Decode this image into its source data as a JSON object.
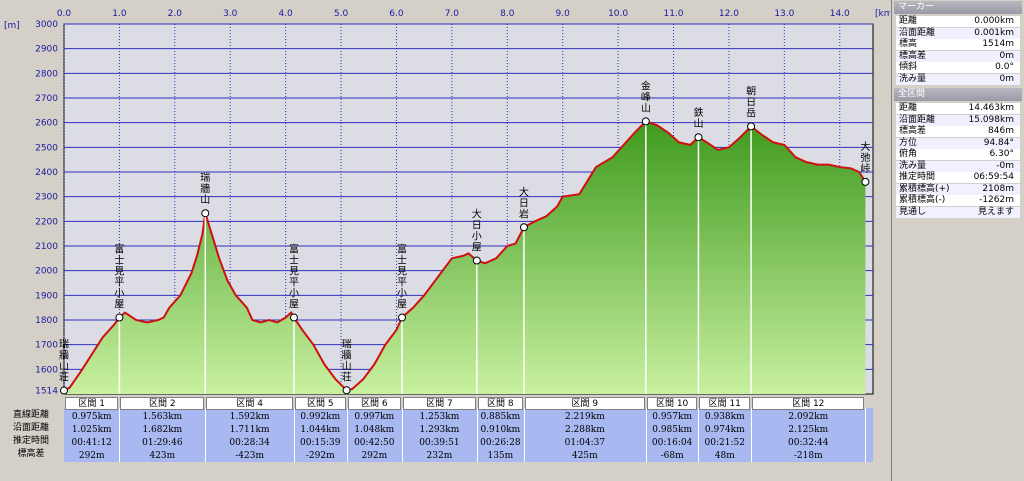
{
  "chart_data": {
    "type": "area",
    "xlabel": "[km]",
    "ylabel": "[m]",
    "xlim": [
      0,
      14.6
    ],
    "ylim": [
      1500,
      3000
    ],
    "x_ticks": [
      "0.0",
      "1.0",
      "2.0",
      "3.0",
      "4.0",
      "5.0",
      "6.0",
      "7.0",
      "8.0",
      "9.0",
      "10.0",
      "11.0",
      "12.0",
      "13.0",
      "14.0"
    ],
    "y_ticks": [
      "3000",
      "2900",
      "2800",
      "2700",
      "2600",
      "2500",
      "2400",
      "2300",
      "2200",
      "2100",
      "2000",
      "1900",
      "1800",
      "1700",
      "1600",
      "1514"
    ],
    "profile": [
      [
        0,
        1514
      ],
      [
        0.1,
        1525
      ],
      [
        0.3,
        1590
      ],
      [
        0.5,
        1660
      ],
      [
        0.7,
        1730
      ],
      [
        0.9,
        1780
      ],
      [
        1.0,
        1810
      ],
      [
        1.1,
        1830
      ],
      [
        1.3,
        1800
      ],
      [
        1.5,
        1790
      ],
      [
        1.7,
        1800
      ],
      [
        1.8,
        1810
      ],
      [
        1.9,
        1850
      ],
      [
        2.1,
        1900
      ],
      [
        2.3,
        1990
      ],
      [
        2.4,
        2060
      ],
      [
        2.5,
        2150
      ],
      [
        2.55,
        2233
      ],
      [
        2.65,
        2160
      ],
      [
        2.8,
        2050
      ],
      [
        2.95,
        1960
      ],
      [
        3.1,
        1900
      ],
      [
        3.3,
        1850
      ],
      [
        3.4,
        1800
      ],
      [
        3.55,
        1790
      ],
      [
        3.7,
        1800
      ],
      [
        3.85,
        1790
      ],
      [
        4.0,
        1810
      ],
      [
        4.1,
        1830
      ],
      [
        4.15,
        1810
      ],
      [
        4.3,
        1760
      ],
      [
        4.5,
        1700
      ],
      [
        4.7,
        1620
      ],
      [
        4.9,
        1560
      ],
      [
        5.1,
        1515
      ],
      [
        5.2,
        1520
      ],
      [
        5.4,
        1560
      ],
      [
        5.6,
        1620
      ],
      [
        5.8,
        1700
      ],
      [
        6.0,
        1760
      ],
      [
        6.1,
        1810
      ],
      [
        6.3,
        1850
      ],
      [
        6.5,
        1900
      ],
      [
        6.8,
        1990
      ],
      [
        7.0,
        2050
      ],
      [
        7.2,
        2060
      ],
      [
        7.3,
        2070
      ],
      [
        7.45,
        2041
      ],
      [
        7.6,
        2030
      ],
      [
        7.8,
        2050
      ],
      [
        8.0,
        2100
      ],
      [
        8.15,
        2110
      ],
      [
        8.3,
        2176
      ],
      [
        8.5,
        2200
      ],
      [
        8.7,
        2220
      ],
      [
        8.9,
        2260
      ],
      [
        9.0,
        2300
      ],
      [
        9.3,
        2310
      ],
      [
        9.6,
        2420
      ],
      [
        9.9,
        2460
      ],
      [
        10.1,
        2510
      ],
      [
        10.3,
        2560
      ],
      [
        10.5,
        2605
      ],
      [
        10.7,
        2590
      ],
      [
        10.9,
        2560
      ],
      [
        11.1,
        2520
      ],
      [
        11.3,
        2510
      ],
      [
        11.45,
        2541
      ],
      [
        11.6,
        2520
      ],
      [
        11.8,
        2490
      ],
      [
        12.0,
        2500
      ],
      [
        12.2,
        2540
      ],
      [
        12.4,
        2585
      ],
      [
        12.6,
        2550
      ],
      [
        12.8,
        2520
      ],
      [
        13.0,
        2510
      ],
      [
        13.2,
        2460
      ],
      [
        13.4,
        2440
      ],
      [
        13.6,
        2430
      ],
      [
        13.8,
        2430
      ],
      [
        14.0,
        2420
      ],
      [
        14.2,
        2415
      ],
      [
        14.35,
        2400
      ],
      [
        14.463,
        2360
      ]
    ],
    "waypoints": [
      {
        "name": "瑞牆山荘",
        "x": 0,
        "y": 1514
      },
      {
        "name": "富士見平小屋",
        "x": 1.0,
        "y": 1810
      },
      {
        "name": "瑞牆山",
        "x": 2.55,
        "y": 2233
      },
      {
        "name": "富士見平小屋",
        "x": 4.15,
        "y": 1810
      },
      {
        "name": "瑞牆山荘",
        "x": 5.1,
        "y": 1515
      },
      {
        "name": "富士見平小屋",
        "x": 6.1,
        "y": 1810
      },
      {
        "name": "大日小屋",
        "x": 7.45,
        "y": 2041
      },
      {
        "name": "大日岩",
        "x": 8.3,
        "y": 2176
      },
      {
        "name": "金峰山",
        "x": 10.5,
        "y": 2605
      },
      {
        "name": "鉄山",
        "x": 11.45,
        "y": 2541
      },
      {
        "name": "朝日岳",
        "x": 12.4,
        "y": 2585
      },
      {
        "name": "大弛峠",
        "x": 14.463,
        "y": 2360
      }
    ]
  },
  "table": {
    "row_labels": [
      "直線距離",
      "沿面距離",
      "推定時間",
      "標高差"
    ],
    "sections": [
      {
        "name": "区間 1",
        "x0": 0,
        "x1": 1.0,
        "dist": "0.975km",
        "surf": "1.025km",
        "time": "00:41:12",
        "diff": "292m"
      },
      {
        "name": "区間 2",
        "x0": 1.0,
        "x1": 2.55,
        "dist": "1.563km",
        "surf": "1.682km",
        "time": "01:29:46",
        "diff": "423m"
      },
      {
        "name": "区間 4",
        "x0": 2.55,
        "x1": 4.15,
        "dist": "1.592km",
        "surf": "1.711km",
        "time": "00:28:34",
        "diff": "-423m"
      },
      {
        "name": "区間 5",
        "x0": 4.15,
        "x1": 5.1,
        "dist": "0.992km",
        "surf": "1.044km",
        "time": "00:15:39",
        "diff": "-292m"
      },
      {
        "name": "区間 6",
        "x0": 5.1,
        "x1": 6.1,
        "dist": "0.997km",
        "surf": "1.048km",
        "time": "00:42:50",
        "diff": "292m"
      },
      {
        "name": "区間 7",
        "x0": 6.1,
        "x1": 7.45,
        "dist": "1.253km",
        "surf": "1.293km",
        "time": "00:39:51",
        "diff": "232m"
      },
      {
        "name": "区間 8",
        "x0": 7.45,
        "x1": 8.3,
        "dist": "0.885km",
        "surf": "0.910km",
        "time": "00:26:28",
        "diff": "135m"
      },
      {
        "name": "区間 9",
        "x0": 8.3,
        "x1": 10.5,
        "dist": "2.219km",
        "surf": "2.288km",
        "time": "01:04:37",
        "diff": "425m"
      },
      {
        "name": "区間 10",
        "x0": 10.5,
        "x1": 11.45,
        "dist": "0.957km",
        "surf": "0.985km",
        "time": "00:16:04",
        "diff": "-68m"
      },
      {
        "name": "区間 11",
        "x0": 11.45,
        "x1": 12.4,
        "dist": "0.938km",
        "surf": "0.974km",
        "time": "00:21:52",
        "diff": "48m"
      },
      {
        "name": "区間 12",
        "x0": 12.4,
        "x1": 14.463,
        "dist": "2.092km",
        "surf": "2.125km",
        "time": "00:32:44",
        "diff": "-218m"
      }
    ]
  },
  "marker": {
    "title": "マーカー",
    "rows": [
      {
        "k": "距離",
        "v": "0.000km"
      },
      {
        "k": "沿面距離",
        "v": "0.001km"
      },
      {
        "k": "標高",
        "v": "1514m"
      },
      {
        "k": "標高差",
        "v": "0m"
      },
      {
        "k": "傾斜",
        "v": "0.0°"
      },
      {
        "k": "洗み量",
        "v": "0m"
      }
    ]
  },
  "whole": {
    "title": "全区間",
    "rows": [
      {
        "k": "距離",
        "v": "14.463km"
      },
      {
        "k": "沿面距離",
        "v": "15.098km"
      },
      {
        "k": "標高差",
        "v": "846m"
      },
      {
        "k": "方位",
        "v": "94.84°"
      },
      {
        "k": "俯角",
        "v": "6.30°"
      },
      {
        "k": "洗み量",
        "v": "-0m"
      },
      {
        "k": "推定時間",
        "v": "06:59:54"
      },
      {
        "k": "累積標高(+)",
        "v": "2108m"
      },
      {
        "k": "累積標高(-)",
        "v": "-1262m"
      },
      {
        "k": "見通し",
        "v": "見えます"
      }
    ]
  },
  "colors": {
    "fill_top": "#3f9a1e",
    "fill_bottom": "#c8f0a0",
    "line": "#d01010",
    "plot_bg": "#dcdce4",
    "grid": "#3030c0",
    "table_bg": "#a8b8f0"
  }
}
